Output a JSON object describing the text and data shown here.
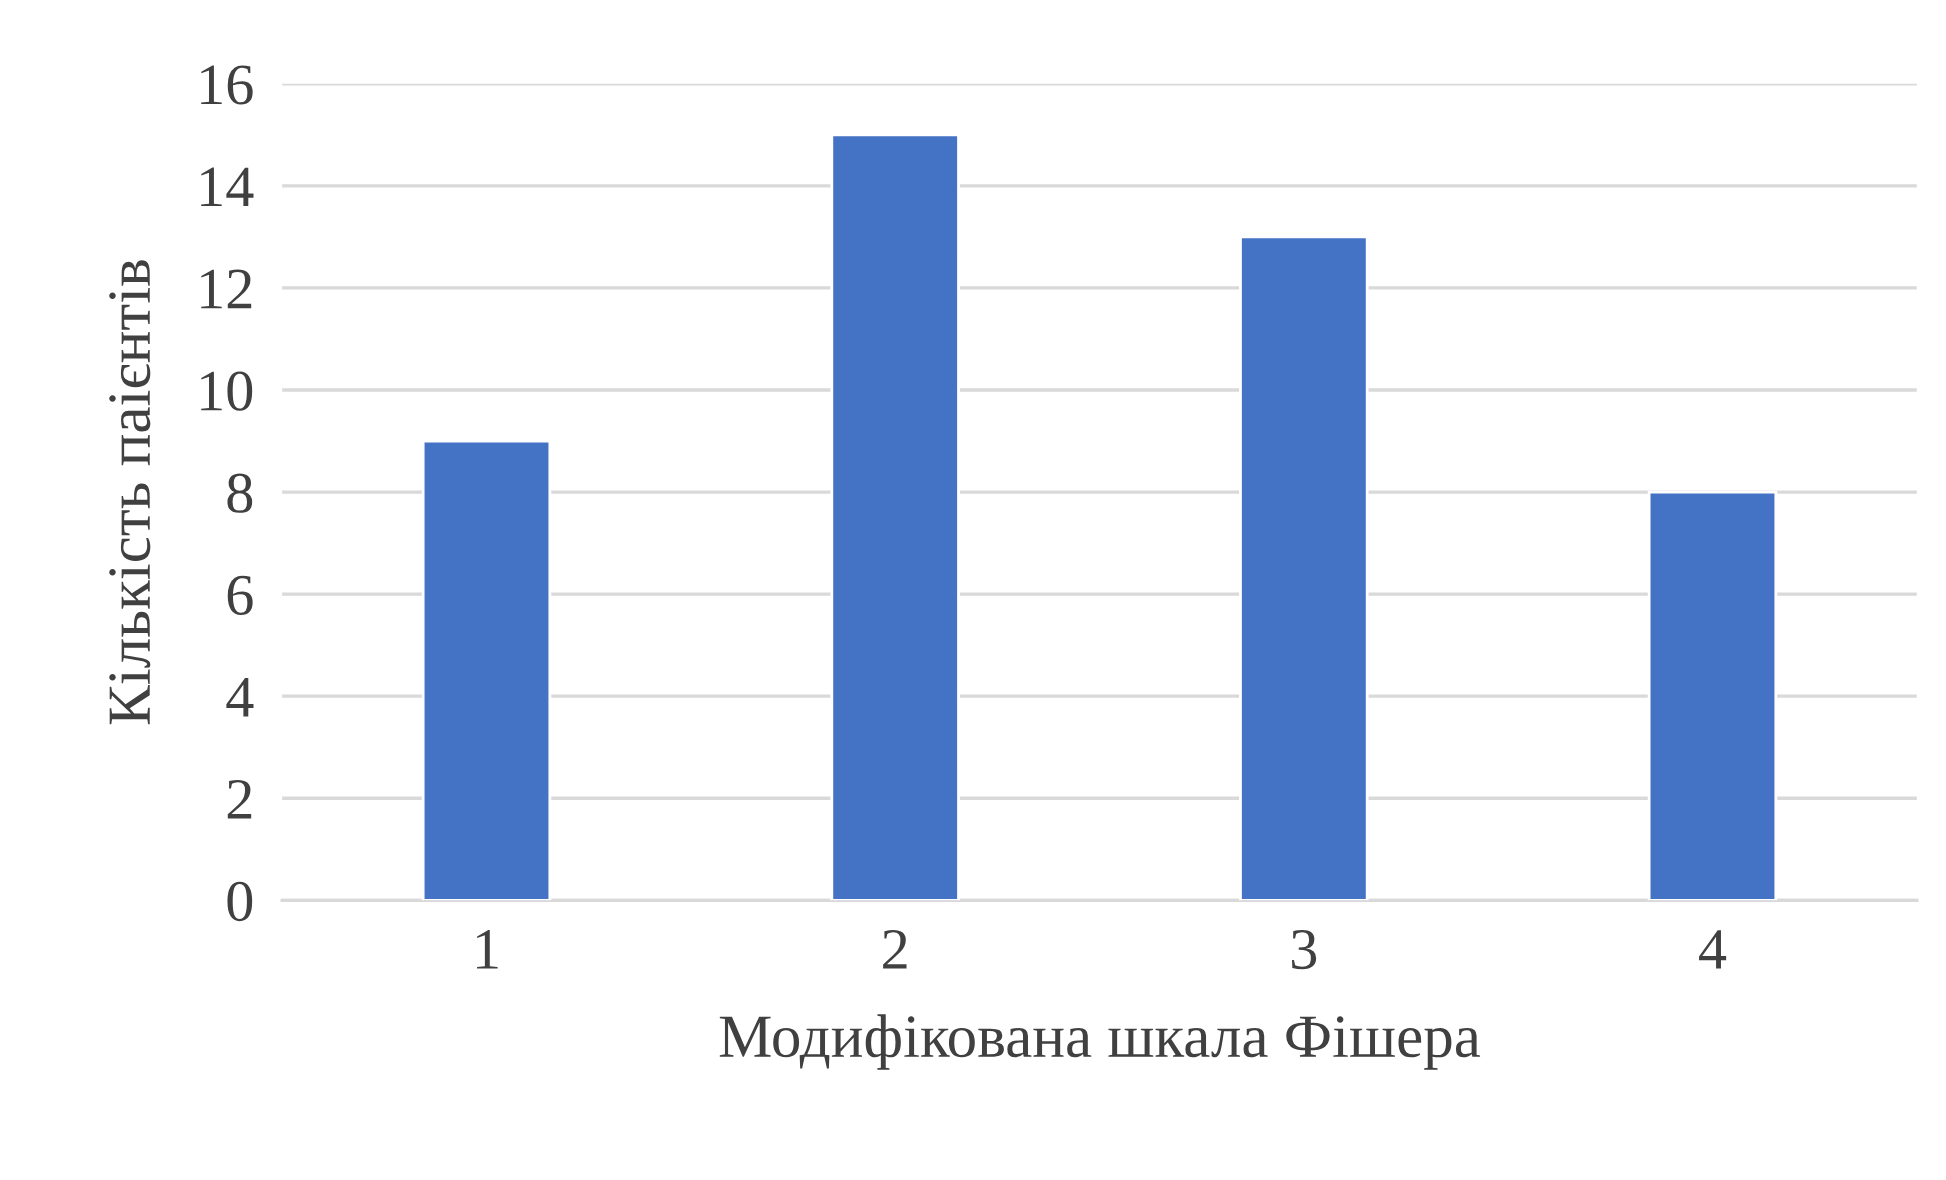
{
  "chart_data": {
    "type": "bar",
    "xlabel": "Модифікована шкала Фішера",
    "ylabel": "Кількість паієнтів",
    "categories": [
      "1",
      "2",
      "3",
      "4"
    ],
    "values": [
      9,
      15,
      13,
      8
    ],
    "color": "#4472c4",
    "ylim": [
      0,
      16
    ],
    "yticks": [
      0,
      2,
      4,
      6,
      8,
      10,
      12,
      14,
      16
    ],
    "grid": "y",
    "legend": false
  }
}
